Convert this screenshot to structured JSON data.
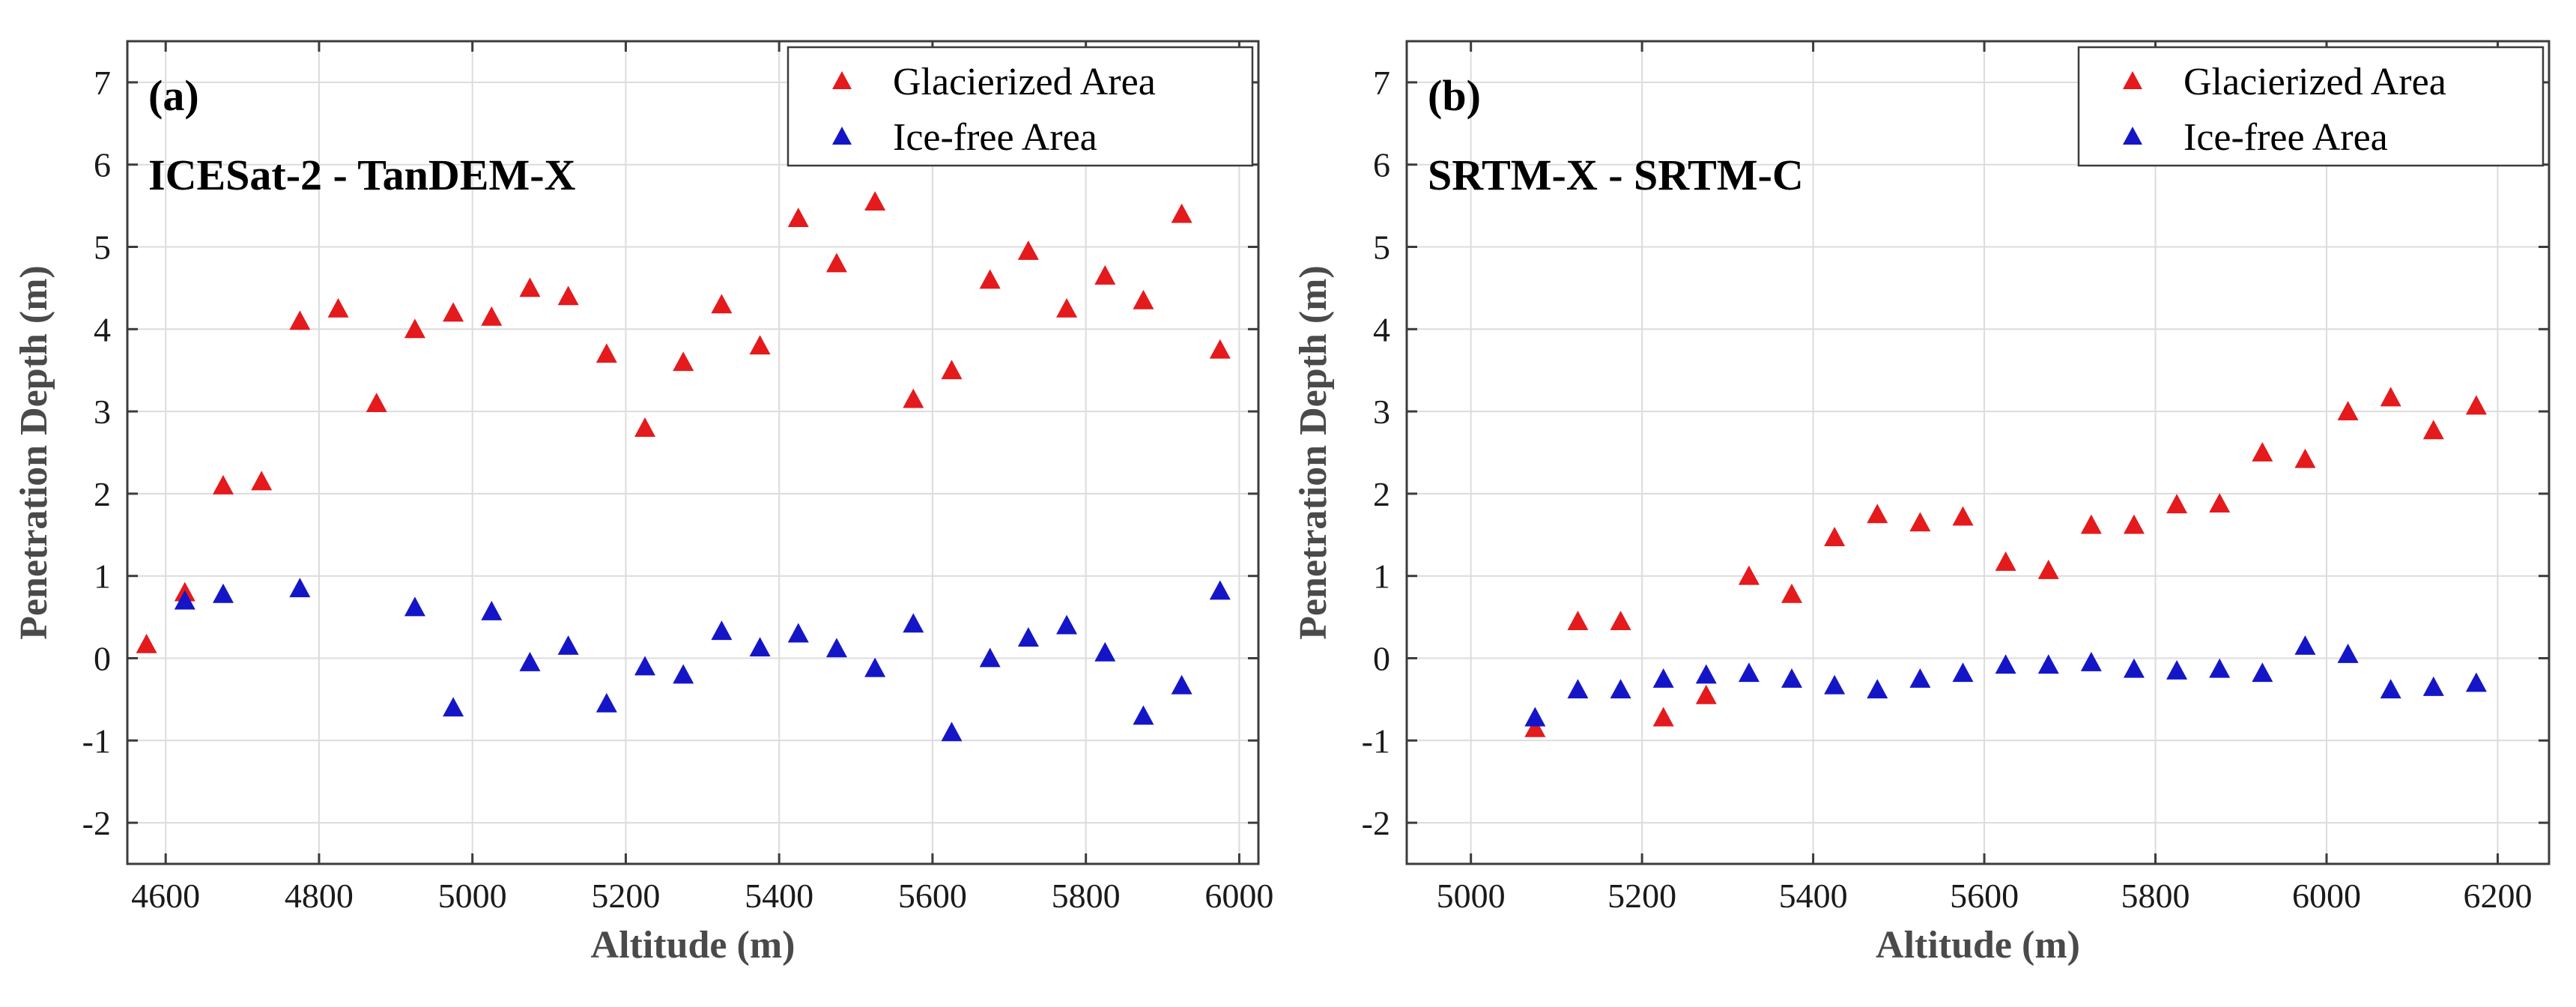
{
  "chart_data": [
    {
      "type": "scatter",
      "panel_label": "(a)",
      "title": "ICESat-2 - TanDEM-X",
      "xlabel": "Altitude (m)",
      "ylabel": "Penetration Depth (m)",
      "xlim": [
        4550,
        6025
      ],
      "ylim": [
        -2.5,
        7.5
      ],
      "xticks": [
        4600,
        4800,
        5000,
        5200,
        5400,
        5600,
        5800,
        6000
      ],
      "yticks": [
        -2,
        -1,
        0,
        1,
        2,
        3,
        4,
        5,
        6,
        7
      ],
      "grid": true,
      "legend_position": "top-right",
      "series": [
        {
          "name": "Glacierized Area",
          "color": "#e41a1c",
          "marker": "triangle",
          "x": [
            4575,
            4625,
            4675,
            4725,
            4775,
            4825,
            4875,
            4925,
            4975,
            5025,
            5075,
            5125,
            5175,
            5225,
            5275,
            5325,
            5375,
            5425,
            5475,
            5525,
            5575,
            5625,
            5675,
            5725,
            5775,
            5825,
            5875,
            5925,
            5975
          ],
          "y": [
            0.17,
            0.8,
            2.1,
            2.15,
            4.1,
            4.25,
            3.1,
            4.0,
            4.2,
            4.15,
            4.5,
            4.4,
            3.7,
            2.8,
            3.6,
            4.3,
            3.8,
            5.35,
            4.8,
            5.55,
            3.15,
            3.5,
            4.6,
            4.95,
            4.25,
            4.65,
            4.35,
            5.4,
            3.75
          ]
        },
        {
          "name": "Ice-free Area",
          "color": "#1515c8",
          "marker": "triangle",
          "x": [
            4625,
            4675,
            4775,
            4925,
            4975,
            5025,
            5075,
            5125,
            5175,
            5225,
            5275,
            5325,
            5375,
            5425,
            5475,
            5525,
            5575,
            5625,
            5675,
            5725,
            5775,
            5825,
            5875,
            5925,
            5975
          ],
          "y": [
            0.7,
            0.78,
            0.85,
            0.62,
            -0.6,
            0.57,
            -0.05,
            0.15,
            -0.55,
            -0.1,
            -0.2,
            0.33,
            0.13,
            0.3,
            0.12,
            -0.12,
            0.42,
            -0.9,
            0.0,
            0.25,
            0.4,
            0.07,
            -0.7,
            -0.33,
            0.82
          ]
        }
      ]
    },
    {
      "type": "scatter",
      "panel_label": "(b)",
      "title": "SRTM-X - SRTM-C",
      "xlabel": "Altitude (m)",
      "ylabel": "Penetration Depth (m)",
      "xlim": [
        4925,
        6260
      ],
      "ylim": [
        -2.5,
        7.5
      ],
      "xticks": [
        5000,
        5200,
        5400,
        5600,
        5800,
        6000,
        6200
      ],
      "yticks": [
        -2,
        -1,
        0,
        1,
        2,
        3,
        4,
        5,
        6,
        7
      ],
      "grid": true,
      "legend_position": "top-right",
      "series": [
        {
          "name": "Glacierized Area",
          "color": "#e41a1c",
          "marker": "triangle",
          "x": [
            5075,
            5125,
            5175,
            5225,
            5275,
            5325,
            5375,
            5425,
            5475,
            5525,
            5575,
            5625,
            5675,
            5725,
            5775,
            5825,
            5875,
            5925,
            5975,
            6025,
            6075,
            6125,
            6175
          ],
          "y": [
            -0.85,
            0.45,
            0.45,
            -0.72,
            -0.45,
            1.0,
            0.78,
            1.47,
            1.75,
            1.65,
            1.72,
            1.17,
            1.07,
            1.62,
            1.62,
            1.87,
            1.88,
            2.5,
            2.42,
            3.0,
            3.17,
            2.77,
            3.07
          ]
        },
        {
          "name": "Ice-free Area",
          "color": "#1515c8",
          "marker": "triangle",
          "x": [
            5075,
            5125,
            5175,
            5225,
            5275,
            5325,
            5375,
            5425,
            5475,
            5525,
            5575,
            5625,
            5675,
            5725,
            5775,
            5825,
            5875,
            5925,
            5975,
            6025,
            6075,
            6125,
            6175
          ],
          "y": [
            -0.72,
            -0.38,
            -0.38,
            -0.25,
            -0.2,
            -0.18,
            -0.25,
            -0.33,
            -0.38,
            -0.25,
            -0.18,
            -0.08,
            -0.08,
            -0.05,
            -0.13,
            -0.15,
            -0.13,
            -0.18,
            0.15,
            0.05,
            -0.38,
            -0.35,
            -0.3
          ]
        }
      ]
    }
  ]
}
